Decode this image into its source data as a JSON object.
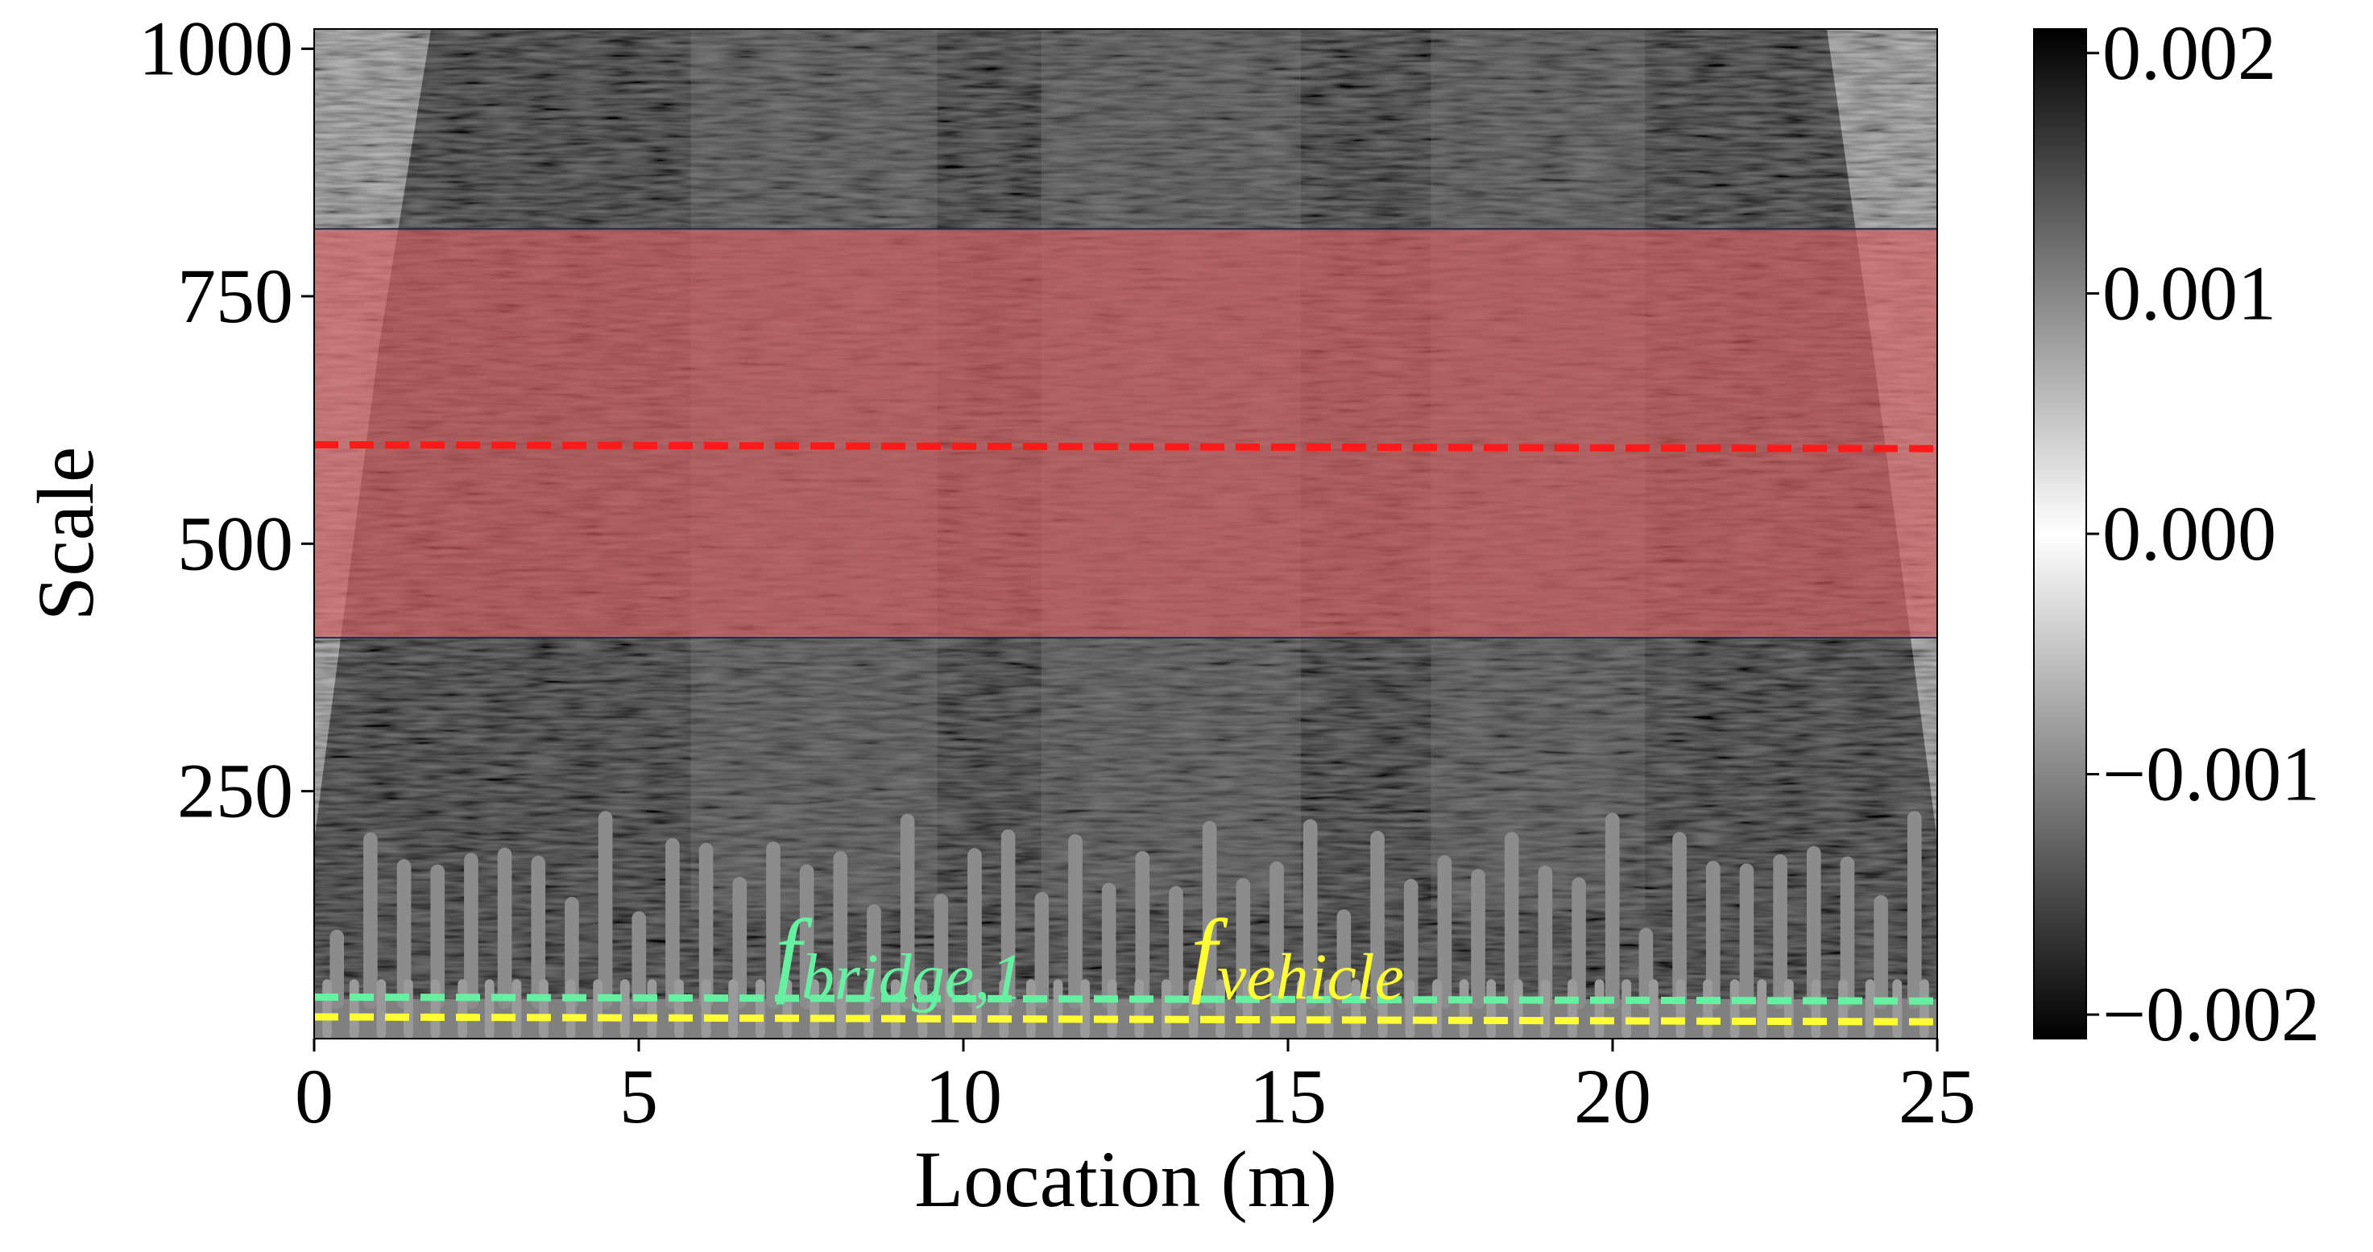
{
  "chart_data": {
    "type": "heatmap",
    "title": "",
    "xlabel": "Location (m)",
    "ylabel": "Scale",
    "xlim": [
      0,
      25
    ],
    "ylim": [
      0,
      1020
    ],
    "x_ticks": [
      0,
      5,
      10,
      15,
      20,
      25
    ],
    "x_tick_labels": [
      "0",
      "5",
      "10",
      "15",
      "20",
      "25"
    ],
    "y_ticks": [
      250,
      500,
      750,
      1000
    ],
    "y_tick_labels": [
      "250",
      "500",
      "750",
      "1000"
    ],
    "colormap": "gray",
    "colorbar": {
      "vmin": -0.0021,
      "vmax": 0.0021,
      "ticks": [
        -0.002,
        -0.001,
        0.0,
        0.001,
        0.002
      ],
      "tick_labels": [
        "−0.002",
        "−0.001",
        "0.000",
        "0.001",
        "0.002"
      ],
      "location": "right"
    },
    "highlight_band": {
      "y_min": 405,
      "y_max": 818,
      "color": "#d9605f",
      "opacity": 0.65
    },
    "reference_lines": [
      {
        "label": "",
        "x": [
          0,
          25
        ],
        "y": [
          600,
          596
        ],
        "color": "#ff1a1a",
        "style": "dashed"
      },
      {
        "label": "f_bridge,1",
        "x": [
          0,
          25
        ],
        "y": [
          42,
          38
        ],
        "color": "#66f0a2",
        "style": "dashed"
      },
      {
        "label": "f_vehicle",
        "x": [
          0,
          25
        ],
        "y": [
          22,
          17
        ],
        "color": "#ffff33",
        "style": "dashed"
      }
    ],
    "annotations": [
      {
        "base": "f",
        "subscript": "bridge,1",
        "x": 7.1,
        "y": 55,
        "color": "#66f0a2"
      },
      {
        "base": "f",
        "subscript": "vehicle",
        "x": 13.5,
        "y": 55,
        "color": "#ffff33"
      }
    ]
  }
}
